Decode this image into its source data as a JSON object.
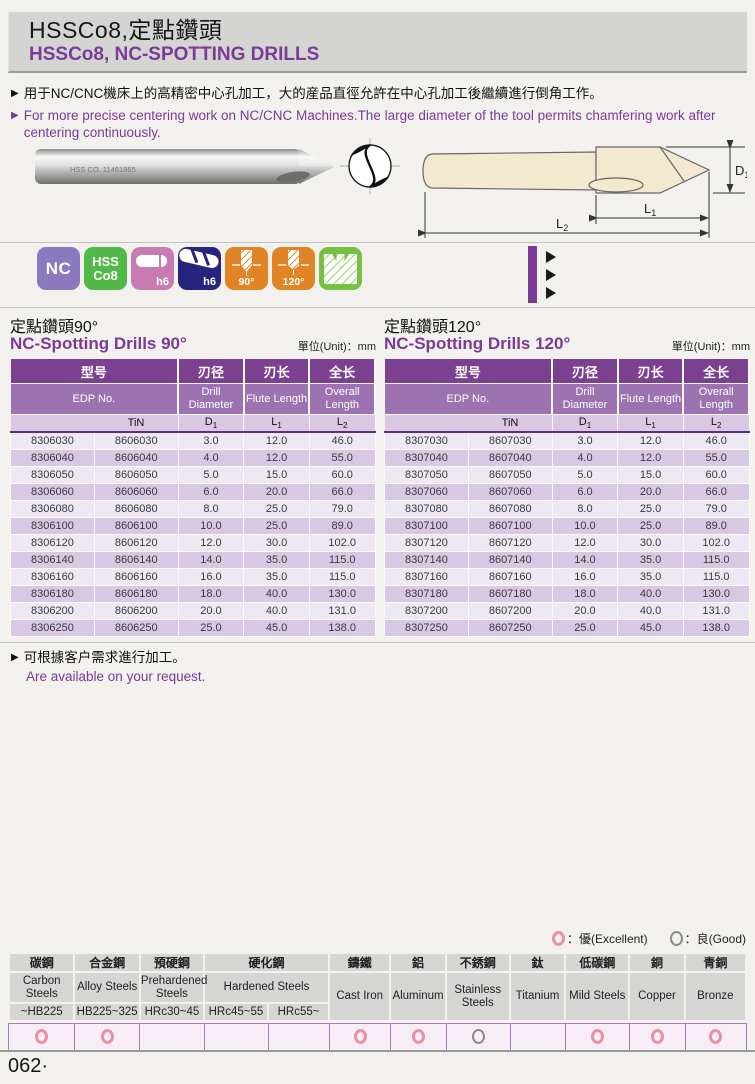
{
  "colors": {
    "page_bg": "#f2f1ee",
    "band_bg": "#d4d4d3",
    "accent": "#7b3a96",
    "head_dark": "#7c4090",
    "head_mid": "#9c72b0",
    "head_light": "#d9c7e3",
    "row_light": "#eee8f2",
    "row_dark": "#d9c8e4",
    "icon_nc": "#8b79c0",
    "icon_hss": "#52b848",
    "icon_h6s": "#c77bb0",
    "icon_h6d": "#26257d",
    "icon_angle": "#e08425",
    "icon_spot": "#76c043",
    "exc": "#e791a3",
    "mat_head": "#d5d5d4",
    "rating_bg": "#f6edf6",
    "rating_border": "#a57cb5"
  },
  "glyphs": {
    "bullet": "▶"
  },
  "header": {
    "title_zh": "HSSCo8,定點鑽頭",
    "title_en": "HSSCo8, NC-SPOTTING DRILLS"
  },
  "intro": {
    "zh": "用于NC/CNC機床上的高精密中心孔加工，大的産品直徑允許在中心孔加工後繼續進行倒角工作。",
    "en": "For more precise centering work on NC/CNC Machines.The large diameter of the tool permits chamfering work after centering continuously."
  },
  "photo": {
    "etch": "HSS CO. 11461865"
  },
  "diagram": {
    "d1": {
      "base": "D",
      "sub": "1"
    },
    "l1": {
      "base": "L",
      "sub": "1"
    },
    "l2": {
      "base": "L",
      "sub": "2"
    }
  },
  "icons": {
    "nc": "NC",
    "hss_line1": "HSS",
    "hss_line2": "Co8",
    "h6_shank": "h6",
    "h6_drill": "h6",
    "angle90": "90°",
    "angle120": "120°"
  },
  "spec_tables": [
    {
      "title_zh": "定點鑽頭90°",
      "title_en": "NC-Spotting Drills 90°",
      "unit": "單位(Unit)：mm",
      "col_zh": [
        "型号",
        "刃径",
        "刃长",
        "全长"
      ],
      "col_en": [
        "EDP No.",
        "Drill Diameter",
        "Flute Length",
        "Overall Length"
      ],
      "sub_tin": "TiN",
      "sub_cols": [
        {
          "base": "D",
          "sub": "1"
        },
        {
          "base": "L",
          "sub": "1"
        },
        {
          "base": "L",
          "sub": "2"
        }
      ],
      "rows": [
        [
          "8306030",
          "8606030",
          "3.0",
          "12.0",
          "46.0"
        ],
        [
          "8306040",
          "8606040",
          "4.0",
          "12.0",
          "55.0"
        ],
        [
          "8306050",
          "8606050",
          "5.0",
          "15.0",
          "60.0"
        ],
        [
          "8306060",
          "8606060",
          "6.0",
          "20.0",
          "66.0"
        ],
        [
          "8306080",
          "8606080",
          "8.0",
          "25.0",
          "79.0"
        ],
        [
          "8306100",
          "8606100",
          "10.0",
          "25.0",
          "89.0"
        ],
        [
          "8306120",
          "8606120",
          "12.0",
          "30.0",
          "102.0"
        ],
        [
          "8306140",
          "8606140",
          "14.0",
          "35.0",
          "115.0"
        ],
        [
          "8306160",
          "8606160",
          "16.0",
          "35.0",
          "115.0"
        ],
        [
          "8306180",
          "8606180",
          "18.0",
          "40.0",
          "130.0"
        ],
        [
          "8306200",
          "8606200",
          "20.0",
          "40.0",
          "131.0"
        ],
        [
          "8306250",
          "8606250",
          "25.0",
          "45.0",
          "138.0"
        ]
      ]
    },
    {
      "title_zh": "定點鑽頭120°",
      "title_en": "NC-Spotting Drills 120°",
      "unit": "單位(Unit)：mm",
      "col_zh": [
        "型号",
        "刃径",
        "刃长",
        "全长"
      ],
      "col_en": [
        "EDP No.",
        "Drill Diameter",
        "Flute Length",
        "Overall Length"
      ],
      "sub_tin": "TiN",
      "sub_cols": [
        {
          "base": "D",
          "sub": "1"
        },
        {
          "base": "L",
          "sub": "1"
        },
        {
          "base": "L",
          "sub": "2"
        }
      ],
      "rows": [
        [
          "8307030",
          "8607030",
          "3.0",
          "12.0",
          "46.0"
        ],
        [
          "8307040",
          "8607040",
          "4.0",
          "12.0",
          "55.0"
        ],
        [
          "8307050",
          "8607050",
          "5.0",
          "15.0",
          "60.0"
        ],
        [
          "8307060",
          "8607060",
          "6.0",
          "20.0",
          "66.0"
        ],
        [
          "8307080",
          "8607080",
          "8.0",
          "25.0",
          "79.0"
        ],
        [
          "8307100",
          "8607100",
          "10.0",
          "25.0",
          "89.0"
        ],
        [
          "8307120",
          "8607120",
          "12.0",
          "30.0",
          "102.0"
        ],
        [
          "8307140",
          "8607140",
          "14.0",
          "35.0",
          "115.0"
        ],
        [
          "8307160",
          "8607160",
          "16.0",
          "35.0",
          "115.0"
        ],
        [
          "8307180",
          "8607180",
          "18.0",
          "40.0",
          "130.0"
        ],
        [
          "8307200",
          "8607200",
          "20.0",
          "40.0",
          "131.0"
        ],
        [
          "8307250",
          "8607250",
          "25.0",
          "45.0",
          "138.0"
        ]
      ]
    }
  ],
  "note": {
    "zh": "可根據客户需求進行加工。",
    "en": "Are available on your request."
  },
  "materials": {
    "legend_excellent": "：優(Excellent)",
    "legend_good": "：良(Good)",
    "groups_zh": [
      "碳鋼",
      "合金鋼",
      "預硬鋼",
      "硬化鋼",
      "鑄鐵",
      "鋁",
      "不銹鋼",
      "鈦",
      "低碳鋼",
      "銅",
      "青銅"
    ],
    "groups_en": [
      "Carbon Steels",
      "Alloy Steels",
      "Prehardened Steels",
      "Hardened Steels",
      "Cast Iron",
      "Aluminum",
      "Stainless Steels",
      "Titanium",
      "Mild Steels",
      "Copper",
      "Bronze"
    ],
    "hardness": [
      "~HB225",
      "HB225~325",
      "HRc30~45",
      "HRc45~55",
      "HRc55~"
    ],
    "ratings": [
      "excellent",
      "excellent",
      "",
      "",
      "",
      "excellent",
      "excellent",
      "good",
      "",
      "excellent",
      "excellent",
      "excellent"
    ]
  },
  "footer": {
    "page_number": "062·"
  }
}
